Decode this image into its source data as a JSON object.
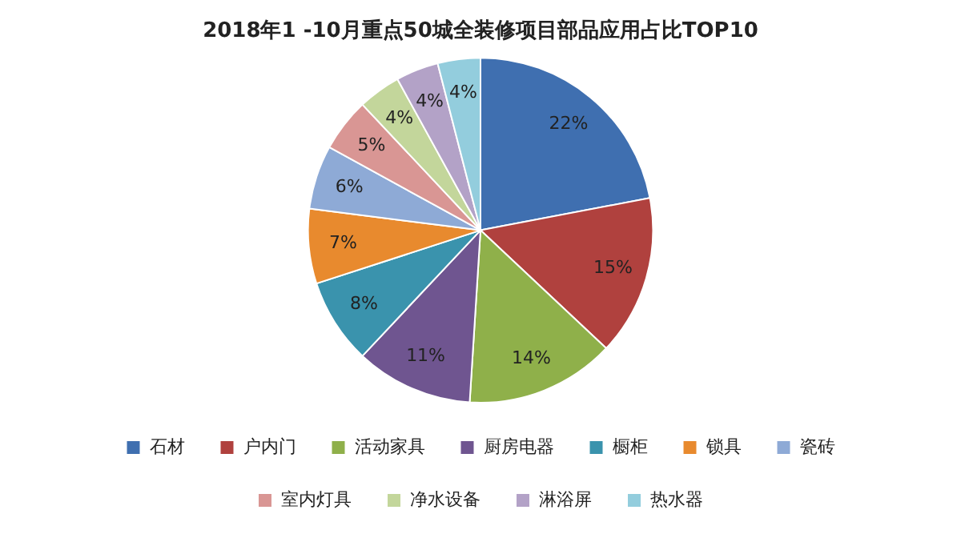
{
  "chart_data": {
    "type": "pie",
    "title": "2018年1 -10月重点50城全装修项目部品应用占比TOP10",
    "categories": [
      "石材",
      "户内门",
      "活动家具",
      "厨房电器",
      "橱柜",
      "锁具",
      "瓷砖",
      "室内灯具",
      "净水设备",
      "淋浴屏",
      "热水器"
    ],
    "values": [
      22,
      15,
      14,
      11,
      8,
      7,
      6,
      5,
      4,
      4,
      4
    ],
    "value_labels": [
      "22%",
      "15%",
      "14%",
      "11%",
      "8%",
      "7%",
      "6%",
      "5%",
      "4%",
      "4%",
      "4%"
    ],
    "colors": [
      "#3f6fb0",
      "#b0413e",
      "#8fb04a",
      "#6f5590",
      "#3a93ad",
      "#e88a2e",
      "#8eaad6",
      "#d99694",
      "#c3d69b",
      "#b3a2c7",
      "#93cddd"
    ],
    "legend": "bottom"
  }
}
